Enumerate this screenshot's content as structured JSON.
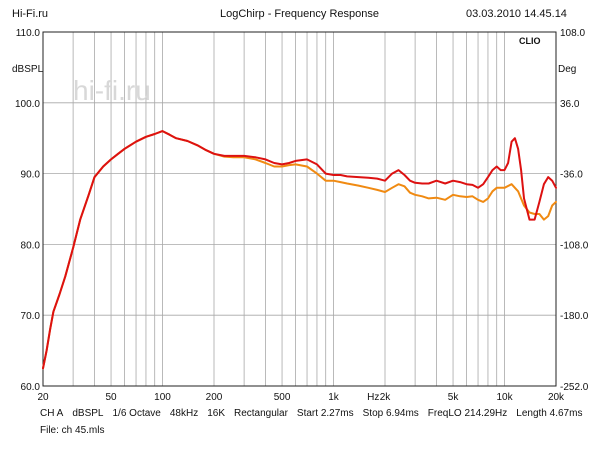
{
  "header": {
    "source": "Hi-Fi.ru",
    "title": "LogChirp - Frequency Response",
    "datetime": "03.03.2010 14.45.14"
  },
  "watermark": "hi-fi.ru",
  "brand": "CLIO",
  "colors": {
    "red": "#dd1111",
    "orange": "#f08a12",
    "grid": "#a8a8a8"
  },
  "chart_data": {
    "type": "line",
    "title": "LogChirp - Frequency Response",
    "xlabel": "Hz",
    "ylabel": "dBSPL",
    "ylabel_right": "Deg",
    "xscale": "log",
    "xlim": [
      20,
      20000
    ],
    "ylim": [
      60,
      110
    ],
    "ylim_right": [
      -252,
      108
    ],
    "grid": true,
    "x_ticks": [
      {
        "value": 20,
        "label": "20"
      },
      {
        "value": 50,
        "label": "50"
      },
      {
        "value": 100,
        "label": "100"
      },
      {
        "value": 200,
        "label": "200"
      },
      {
        "value": 500,
        "label": "500"
      },
      {
        "value": 1000,
        "label": "1k"
      },
      {
        "value": 2000,
        "label": "2k"
      },
      {
        "value": 5000,
        "label": "5k"
      },
      {
        "value": 10000,
        "label": "10k"
      },
      {
        "value": 20000,
        "label": "20k"
      }
    ],
    "y_ticks_left": [
      "60.0",
      "70.0",
      "80.0",
      "90.0",
      "100.0",
      "110.0"
    ],
    "y_ticks_right": [
      "-252.0",
      "-180.0",
      "-108.0",
      "-36.0",
      "36.0",
      "108.0"
    ],
    "series": [
      {
        "name": "orange",
        "x": [
          20,
          21,
          22,
          23,
          25,
          27,
          30,
          33,
          37,
          40,
          45,
          50,
          55,
          60,
          70,
          80,
          90,
          100,
          110,
          120,
          140,
          160,
          180,
          200,
          230,
          260,
          300,
          350,
          400,
          450,
          500,
          550,
          600,
          700,
          800,
          900,
          1000,
          1100,
          1200,
          1400,
          1600,
          1800,
          2000,
          2200,
          2400,
          2600,
          2800,
          3000,
          3300,
          3600,
          4000,
          4500,
          5000,
          5500,
          6000,
          6500,
          7000,
          7500,
          8000,
          8500,
          9000,
          10000,
          11000,
          12000,
          13000,
          14000,
          15000,
          16000,
          17000,
          18000,
          19000,
          20000
        ],
        "values": [
          62.5,
          65.0,
          68.0,
          70.5,
          73.0,
          75.5,
          79.5,
          83.5,
          87.0,
          89.5,
          91.0,
          92.0,
          92.8,
          93.5,
          94.5,
          95.2,
          95.6,
          96.0,
          95.5,
          95.0,
          94.6,
          94.0,
          93.3,
          92.8,
          92.4,
          92.3,
          92.3,
          92.0,
          91.5,
          91.0,
          91.0,
          91.2,
          91.3,
          91.0,
          90.0,
          89.0,
          89.0,
          88.8,
          88.6,
          88.3,
          88.0,
          87.7,
          87.4,
          88.0,
          88.5,
          88.2,
          87.3,
          87.0,
          86.8,
          86.5,
          86.6,
          86.3,
          87.0,
          86.8,
          86.7,
          86.8,
          86.3,
          86.0,
          86.5,
          87.5,
          88.0,
          88.0,
          88.5,
          87.5,
          85.5,
          84.5,
          84.3,
          84.3,
          83.5,
          84.0,
          85.5,
          86.0
        ]
      },
      {
        "name": "red",
        "x": [
          20,
          21,
          22,
          23,
          25,
          27,
          30,
          33,
          37,
          40,
          45,
          50,
          55,
          60,
          70,
          80,
          90,
          100,
          110,
          120,
          140,
          160,
          180,
          200,
          230,
          260,
          300,
          350,
          400,
          450,
          500,
          550,
          600,
          700,
          800,
          900,
          1000,
          1100,
          1200,
          1400,
          1600,
          1800,
          2000,
          2200,
          2400,
          2600,
          2800,
          3000,
          3300,
          3600,
          4000,
          4500,
          5000,
          5500,
          6000,
          6500,
          7000,
          7500,
          8000,
          8500,
          9000,
          9500,
          10000,
          10500,
          11000,
          11500,
          12000,
          12500,
          13000,
          14000,
          15000,
          16000,
          17000,
          18000,
          19000,
          20000
        ],
        "values": [
          62.5,
          65.0,
          68.0,
          70.5,
          73.0,
          75.5,
          79.5,
          83.5,
          87.0,
          89.5,
          91.0,
          92.0,
          92.8,
          93.5,
          94.5,
          95.2,
          95.6,
          96.0,
          95.5,
          95.0,
          94.6,
          94.0,
          93.3,
          92.8,
          92.5,
          92.5,
          92.5,
          92.3,
          92.0,
          91.5,
          91.3,
          91.5,
          91.8,
          92.0,
          91.3,
          90.0,
          89.8,
          89.8,
          89.6,
          89.5,
          89.4,
          89.3,
          89.0,
          90.0,
          90.5,
          89.8,
          89.0,
          88.7,
          88.6,
          88.6,
          89.0,
          88.6,
          89.0,
          88.8,
          88.5,
          88.4,
          88.0,
          88.5,
          89.5,
          90.5,
          91.0,
          90.5,
          90.5,
          91.5,
          94.5,
          95.0,
          93.5,
          90.5,
          86.5,
          83.5,
          83.5,
          86.0,
          88.5,
          89.5,
          89.0,
          88.0
        ]
      }
    ]
  },
  "footer": {
    "line1": [
      "CH A",
      "dBSPL",
      "1/6 Octave",
      "48kHz",
      "16K",
      "Rectangular",
      "Start 2.27ms",
      "Stop 6.94ms",
      "FreqLO 214.29Hz",
      "Length 4.67ms"
    ],
    "line2": "File: ch 45.mls"
  }
}
